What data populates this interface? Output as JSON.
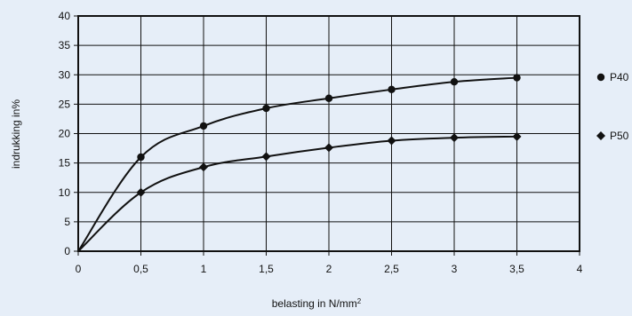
{
  "chart_data": {
    "type": "line",
    "title": "",
    "xlabel": "belasting in N/mm",
    "xlabel_superscript": "2",
    "ylabel": "indrukking in%",
    "xlim": [
      0,
      4
    ],
    "ylim": [
      0,
      40
    ],
    "grid": true,
    "legend_position": "right",
    "x_ticks": [
      0,
      0.5,
      1,
      1.5,
      2,
      2.5,
      3,
      3.5,
      4
    ],
    "x_tick_labels": [
      "0",
      "0,5",
      "1",
      "1,5",
      "2",
      "2,5",
      "3",
      "3,5",
      "4"
    ],
    "y_ticks": [
      0,
      5,
      10,
      15,
      20,
      25,
      30,
      35,
      40
    ],
    "y_tick_labels": [
      "0",
      "5",
      "10",
      "15",
      "20",
      "25",
      "30",
      "35",
      "40"
    ],
    "series": [
      {
        "name": "P40",
        "marker": "circle",
        "color": "#111111",
        "x": [
          0,
          0.5,
          1,
          1.5,
          2,
          2.5,
          3,
          3.5
        ],
        "y": [
          0,
          16,
          21.3,
          24.3,
          26,
          27.5,
          28.8,
          29.5
        ]
      },
      {
        "name": "P50",
        "marker": "diamond",
        "color": "#111111",
        "x": [
          0,
          0.5,
          1,
          1.5,
          2,
          2.5,
          3,
          3.5
        ],
        "y": [
          0,
          10,
          14.3,
          16.1,
          17.6,
          18.8,
          19.3,
          19.5
        ]
      }
    ]
  },
  "colors": {
    "background": "#e6eef8",
    "plot_area": "#e6eef8",
    "line": "#111111",
    "grid": "#111111"
  }
}
